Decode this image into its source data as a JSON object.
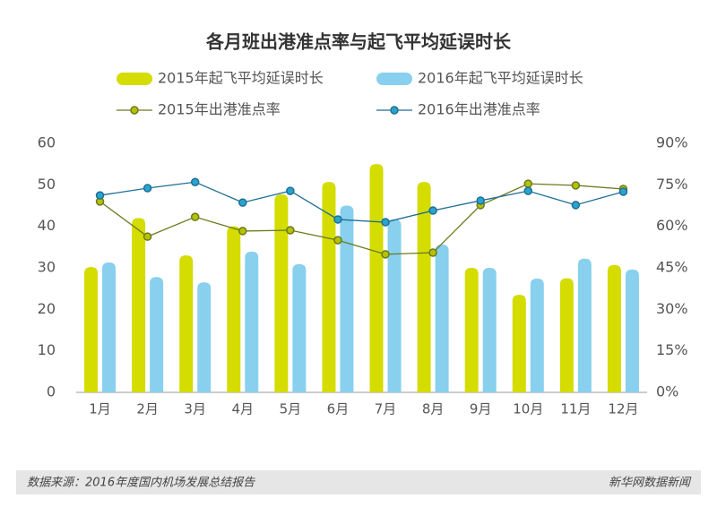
{
  "chart_data": {
    "type": "bar",
    "title": "各月班出港准点率与起飞平均延误时长",
    "categories": [
      "1月",
      "2月",
      "3月",
      "4月",
      "5月",
      "6月",
      "7月",
      "8月",
      "9月",
      "10月",
      "11月",
      "12月"
    ],
    "series": [
      {
        "name": "2015年起飞平均延误时长",
        "type": "bar",
        "color": "#d4dc00",
        "values": [
          30.2,
          42,
          33,
          40,
          47.7,
          50.7,
          55,
          50.7,
          30,
          23.5,
          27.5,
          30.7
        ]
      },
      {
        "name": "2016年起飞平均延误时长",
        "type": "bar",
        "color": "#88d0ee",
        "values": [
          31.3,
          27.8,
          26.5,
          33.9,
          30.9,
          45,
          41.7,
          35.6,
          30,
          27.4,
          32.2,
          29.6
        ]
      },
      {
        "name": "2015年出港准点率",
        "type": "line",
        "axis": "y2",
        "color": "#6b7a1f",
        "values": [
          69,
          56.3,
          63.4,
          58.3,
          58.6,
          55,
          49.9,
          50.5,
          67.7,
          75.4,
          74.8,
          73.5
        ]
      },
      {
        "name": "2016年出港准点率",
        "type": "line",
        "axis": "y2",
        "color": "#1f6f95",
        "values": [
          71.2,
          73.8,
          76,
          68.6,
          72.8,
          62.5,
          61.5,
          65.7,
          69.3,
          72.8,
          67.7,
          72.5
        ]
      }
    ],
    "ylim": [
      0,
      60
    ],
    "yticks": [
      0,
      10,
      20,
      30,
      40,
      50,
      60
    ],
    "y2lim": [
      0,
      90
    ],
    "y2ticks": [
      {
        "value": 0,
        "label": "0%"
      },
      {
        "value": 15,
        "label": "15%"
      },
      {
        "value": 30,
        "label": "30%"
      },
      {
        "value": 45,
        "label": "45%"
      },
      {
        "value": 60,
        "label": "60%"
      },
      {
        "value": 75,
        "label": "75%"
      },
      {
        "value": 90,
        "label": "90%"
      }
    ],
    "grid": false,
    "source": "数据来源：2016年度国内机场发展总结报告",
    "credit": "新华网数据新闻"
  }
}
